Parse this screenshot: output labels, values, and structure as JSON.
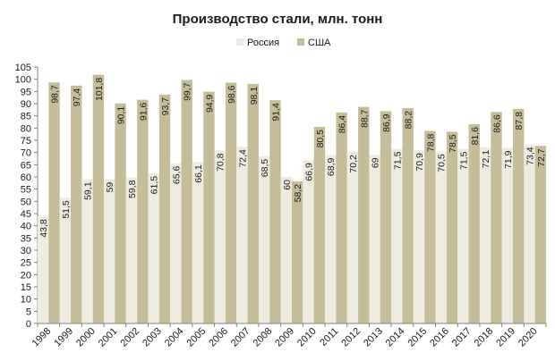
{
  "chart_data": {
    "type": "bar",
    "title": "Производство стали, млн. тонн",
    "legend_position": "top",
    "grid": false,
    "ylim": [
      0,
      105
    ],
    "yticks": [
      0,
      5,
      10,
      15,
      20,
      25,
      30,
      35,
      40,
      45,
      50,
      55,
      60,
      65,
      70,
      75,
      80,
      85,
      90,
      95,
      100,
      105
    ],
    "categories": [
      "1998",
      "1999",
      "2000",
      "2001",
      "2002",
      "2003",
      "2004",
      "2005",
      "2006",
      "2007",
      "2008",
      "2009",
      "2010",
      "2011",
      "2012",
      "2013",
      "2014",
      "2015",
      "2016",
      "2017",
      "2018",
      "2019",
      "2020"
    ],
    "series": [
      {
        "name": "Россия",
        "color": "#eeece1",
        "values": [
          43.8,
          51.5,
          59.1,
          59,
          59.8,
          61.5,
          65.6,
          66.1,
          70.8,
          72.4,
          68.5,
          60,
          66.9,
          68.9,
          70.2,
          69,
          71.5,
          70.9,
          70.5,
          71.5,
          72.1,
          71.9,
          73.4
        ]
      },
      {
        "name": "США",
        "color": "#c4bd97",
        "values": [
          98.7,
          97.4,
          101.8,
          90.1,
          91.6,
          93.7,
          99.7,
          94.9,
          98.6,
          98.1,
          91.4,
          58.2,
          80.5,
          86.4,
          88.7,
          86.9,
          88.2,
          78.8,
          78.5,
          81.6,
          86.6,
          87.8,
          72.7
        ]
      }
    ]
  }
}
